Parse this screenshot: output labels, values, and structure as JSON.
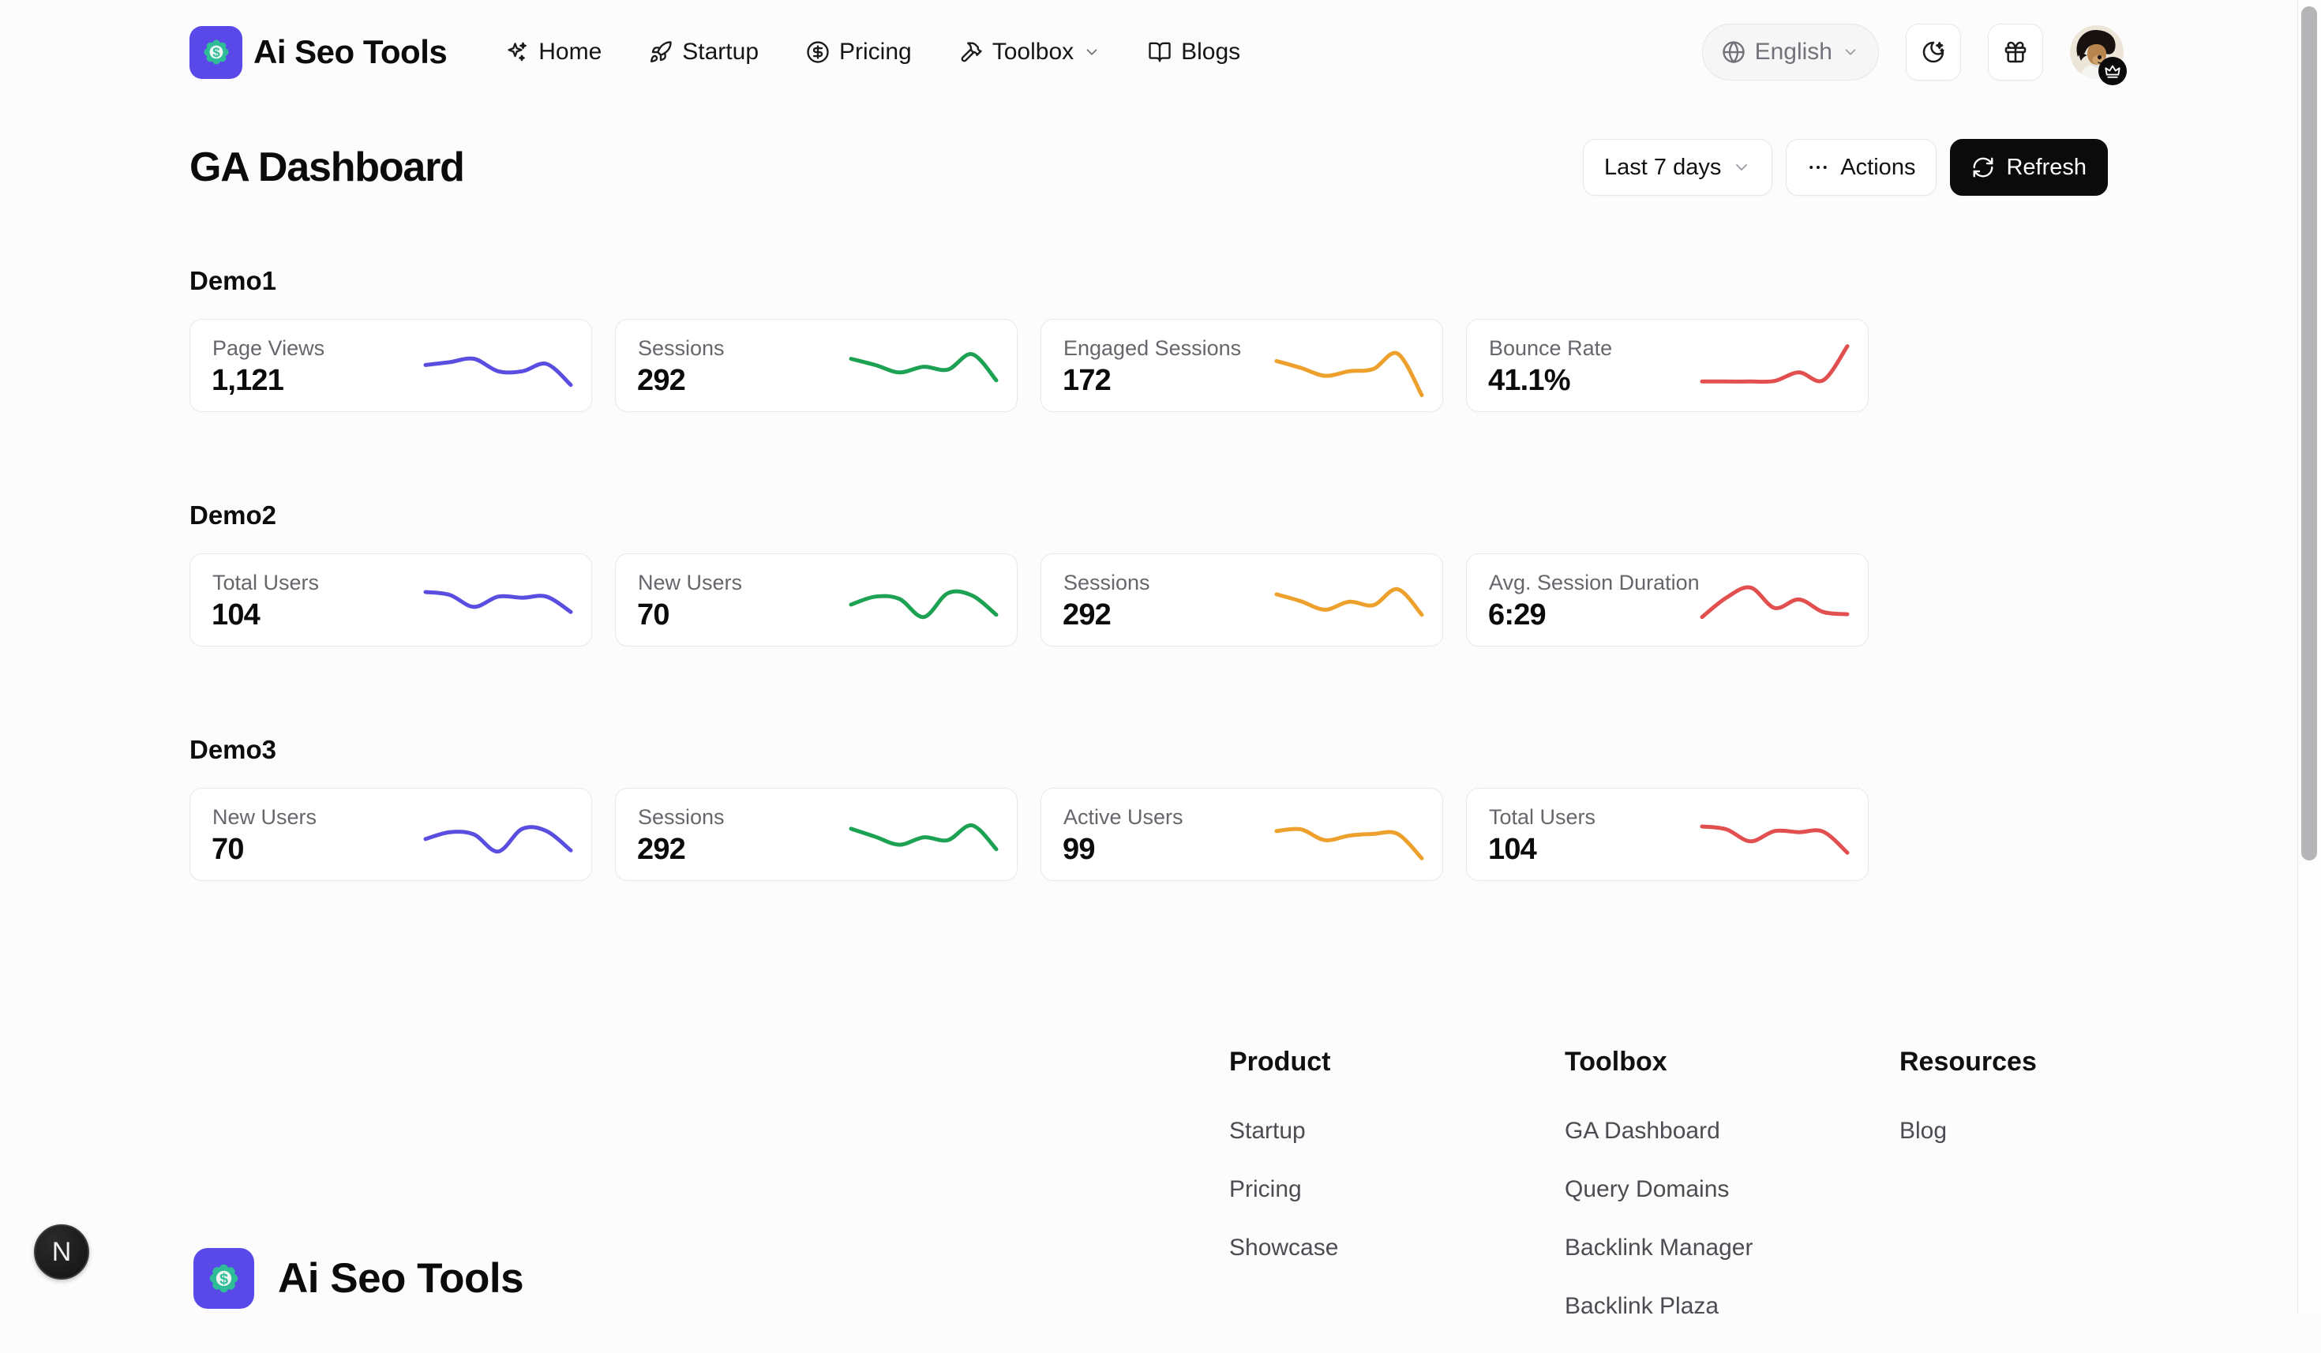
{
  "brand": {
    "name": "Ai Seo Tools",
    "logo_icon": "dollar-badge-icon"
  },
  "nav": {
    "items": [
      {
        "label": "Home",
        "icon": "sparkles-icon"
      },
      {
        "label": "Startup",
        "icon": "rocket-icon"
      },
      {
        "label": "Pricing",
        "icon": "dollar-circle-icon"
      },
      {
        "label": "Toolbox",
        "icon": "tools-icon",
        "has_dropdown": true
      },
      {
        "label": "Blogs",
        "icon": "book-open-icon"
      }
    ],
    "language": {
      "label": "English",
      "icon": "globe-icon"
    },
    "theme_button_icon": "moon-stars-icon",
    "rewards_button_icon": "gift-icon",
    "avatar_badge_icon": "crown-icon"
  },
  "page": {
    "title": "GA Dashboard",
    "date_range": "Last 7 days",
    "actions_label": "Actions",
    "refresh_label": "Refresh"
  },
  "sections": [
    {
      "title": "Demo1",
      "cards": [
        {
          "label": "Page Views",
          "value": "1,121",
          "color": "#5a4ee0",
          "spark": [
            55,
            60,
            66,
            44,
            44,
            57,
            20
          ]
        },
        {
          "label": "Sessions",
          "value": "292",
          "color": "#1da152",
          "spark": [
            66,
            55,
            42,
            52,
            47,
            74,
            28
          ]
        },
        {
          "label": "Engaged Sessions",
          "value": "172",
          "color": "#eea02c",
          "spark": [
            62,
            50,
            36,
            44,
            48,
            75,
            2
          ]
        },
        {
          "label": "Bounce Rate",
          "value": "41.1%",
          "color": "#e14f4f",
          "spark": [
            26,
            26,
            26,
            27,
            42,
            28,
            88
          ]
        }
      ]
    },
    {
      "title": "Demo2",
      "cards": [
        {
          "label": "Total Users",
          "value": "104",
          "color": "#5a4ee0",
          "spark": [
            68,
            63,
            42,
            60,
            58,
            60,
            33
          ]
        },
        {
          "label": "New Users",
          "value": "70",
          "color": "#1da152",
          "spark": [
            46,
            60,
            56,
            24,
            66,
            62,
            28
          ]
        },
        {
          "label": "Sessions",
          "value": "292",
          "color": "#eea02c",
          "spark": [
            64,
            52,
            37,
            51,
            45,
            73,
            28
          ]
        },
        {
          "label": "Avg. Session Duration",
          "value": "6:29",
          "color": "#e14f4f",
          "spark": [
            24,
            58,
            76,
            40,
            55,
            33,
            29
          ]
        }
      ]
    },
    {
      "title": "Demo3",
      "cards": [
        {
          "label": "New Users",
          "value": "70",
          "color": "#5a4ee0",
          "spark": [
            46,
            58,
            54,
            24,
            64,
            60,
            26
          ]
        },
        {
          "label": "Sessions",
          "value": "292",
          "color": "#1da152",
          "spark": [
            64,
            50,
            36,
            49,
            44,
            70,
            28
          ]
        },
        {
          "label": "Active Users",
          "value": "99",
          "color": "#eea02c",
          "spark": [
            60,
            63,
            44,
            52,
            55,
            55,
            12
          ]
        },
        {
          "label": "Total Users",
          "value": "104",
          "color": "#e14f4f",
          "spark": [
            68,
            63,
            42,
            60,
            58,
            59,
            22
          ]
        }
      ]
    }
  ],
  "footer": {
    "columns": [
      {
        "title": "Product",
        "links": [
          "Startup",
          "Pricing",
          "Showcase"
        ]
      },
      {
        "title": "Toolbox",
        "links": [
          "GA Dashboard",
          "Query Domains",
          "Backlink Manager",
          "Backlink Plaza"
        ]
      },
      {
        "title": "Resources",
        "links": [
          "Blog"
        ]
      }
    ],
    "brand": "Ai Seo Tools"
  },
  "dev_badge": "N",
  "colors": {
    "accent_indigo": "#5a4ee0",
    "spark_green": "#1da152",
    "spark_orange": "#eea02c",
    "spark_red": "#e14f4f",
    "logo_bg": "#5a49e9",
    "logo_badge": "#2ebd96",
    "button_dark": "#0b0b0c"
  }
}
